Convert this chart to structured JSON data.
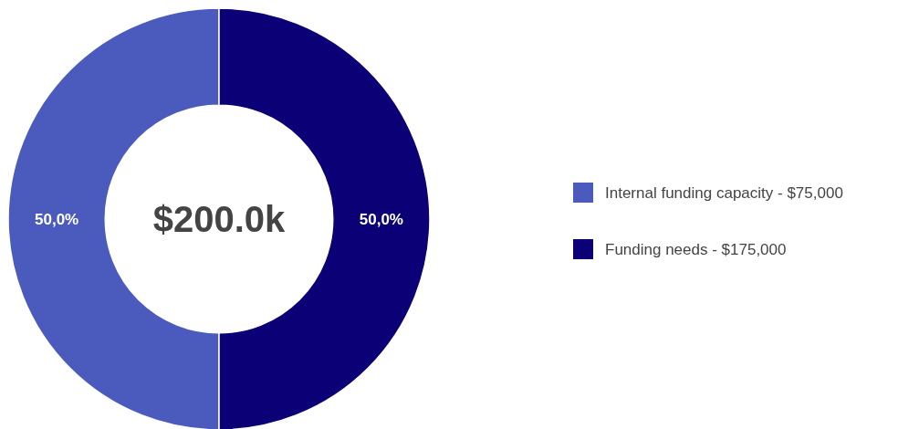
{
  "chart_data": {
    "type": "donut",
    "categories": [
      "Internal funding capacity - $75,000",
      "Funding needs - $175,000"
    ],
    "values": [
      50,
      50
    ],
    "colors": [
      "#4b5bbd",
      "#0b0075"
    ],
    "value_labels": [
      "50,0%",
      "50,0%"
    ],
    "annotations": [
      "$200.0k"
    ],
    "legend": "right"
  }
}
